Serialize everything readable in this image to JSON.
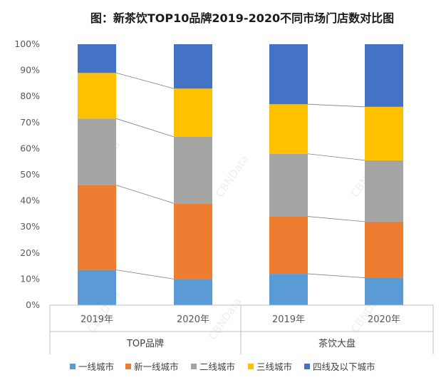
{
  "chart_data": {
    "type": "bar",
    "stacked": true,
    "title": "图：新茶饮TOP10品牌2019-2020不同市场门店数对比图",
    "watermark": "CBNData",
    "categories": [
      "2019年",
      "2020年",
      "2019年",
      "2020年"
    ],
    "groups": [
      {
        "label": "TOP品牌",
        "categories": [
          "2019年",
          "2020年"
        ]
      },
      {
        "label": "茶饮大盘",
        "categories": [
          "2019年",
          "2020年"
        ]
      }
    ],
    "yticks": [
      "0%",
      "10%",
      "20%",
      "30%",
      "40%",
      "50%",
      "60%",
      "70%",
      "80%",
      "90%",
      "100%"
    ],
    "ylim": [
      0,
      100
    ],
    "series": [
      {
        "name": "一线城市",
        "color": "#5B9BD5",
        "values": [
          13.5,
          10,
          12,
          10.5
        ]
      },
      {
        "name": "新一线城市",
        "color": "#ED7D31",
        "values": [
          32.5,
          29,
          22,
          21.5
        ]
      },
      {
        "name": "二线城市",
        "color": "#A5A5A5",
        "values": [
          25.5,
          25.5,
          24,
          23.5
        ]
      },
      {
        "name": "三线城市",
        "color": "#FFC000",
        "values": [
          17.5,
          18.5,
          19,
          20.5
        ]
      },
      {
        "name": "四线及以下城市",
        "color": "#4472C4",
        "values": [
          11,
          17,
          23,
          24
        ]
      }
    ],
    "legend_position": "bottom",
    "connector_lines": true,
    "grid": false
  }
}
